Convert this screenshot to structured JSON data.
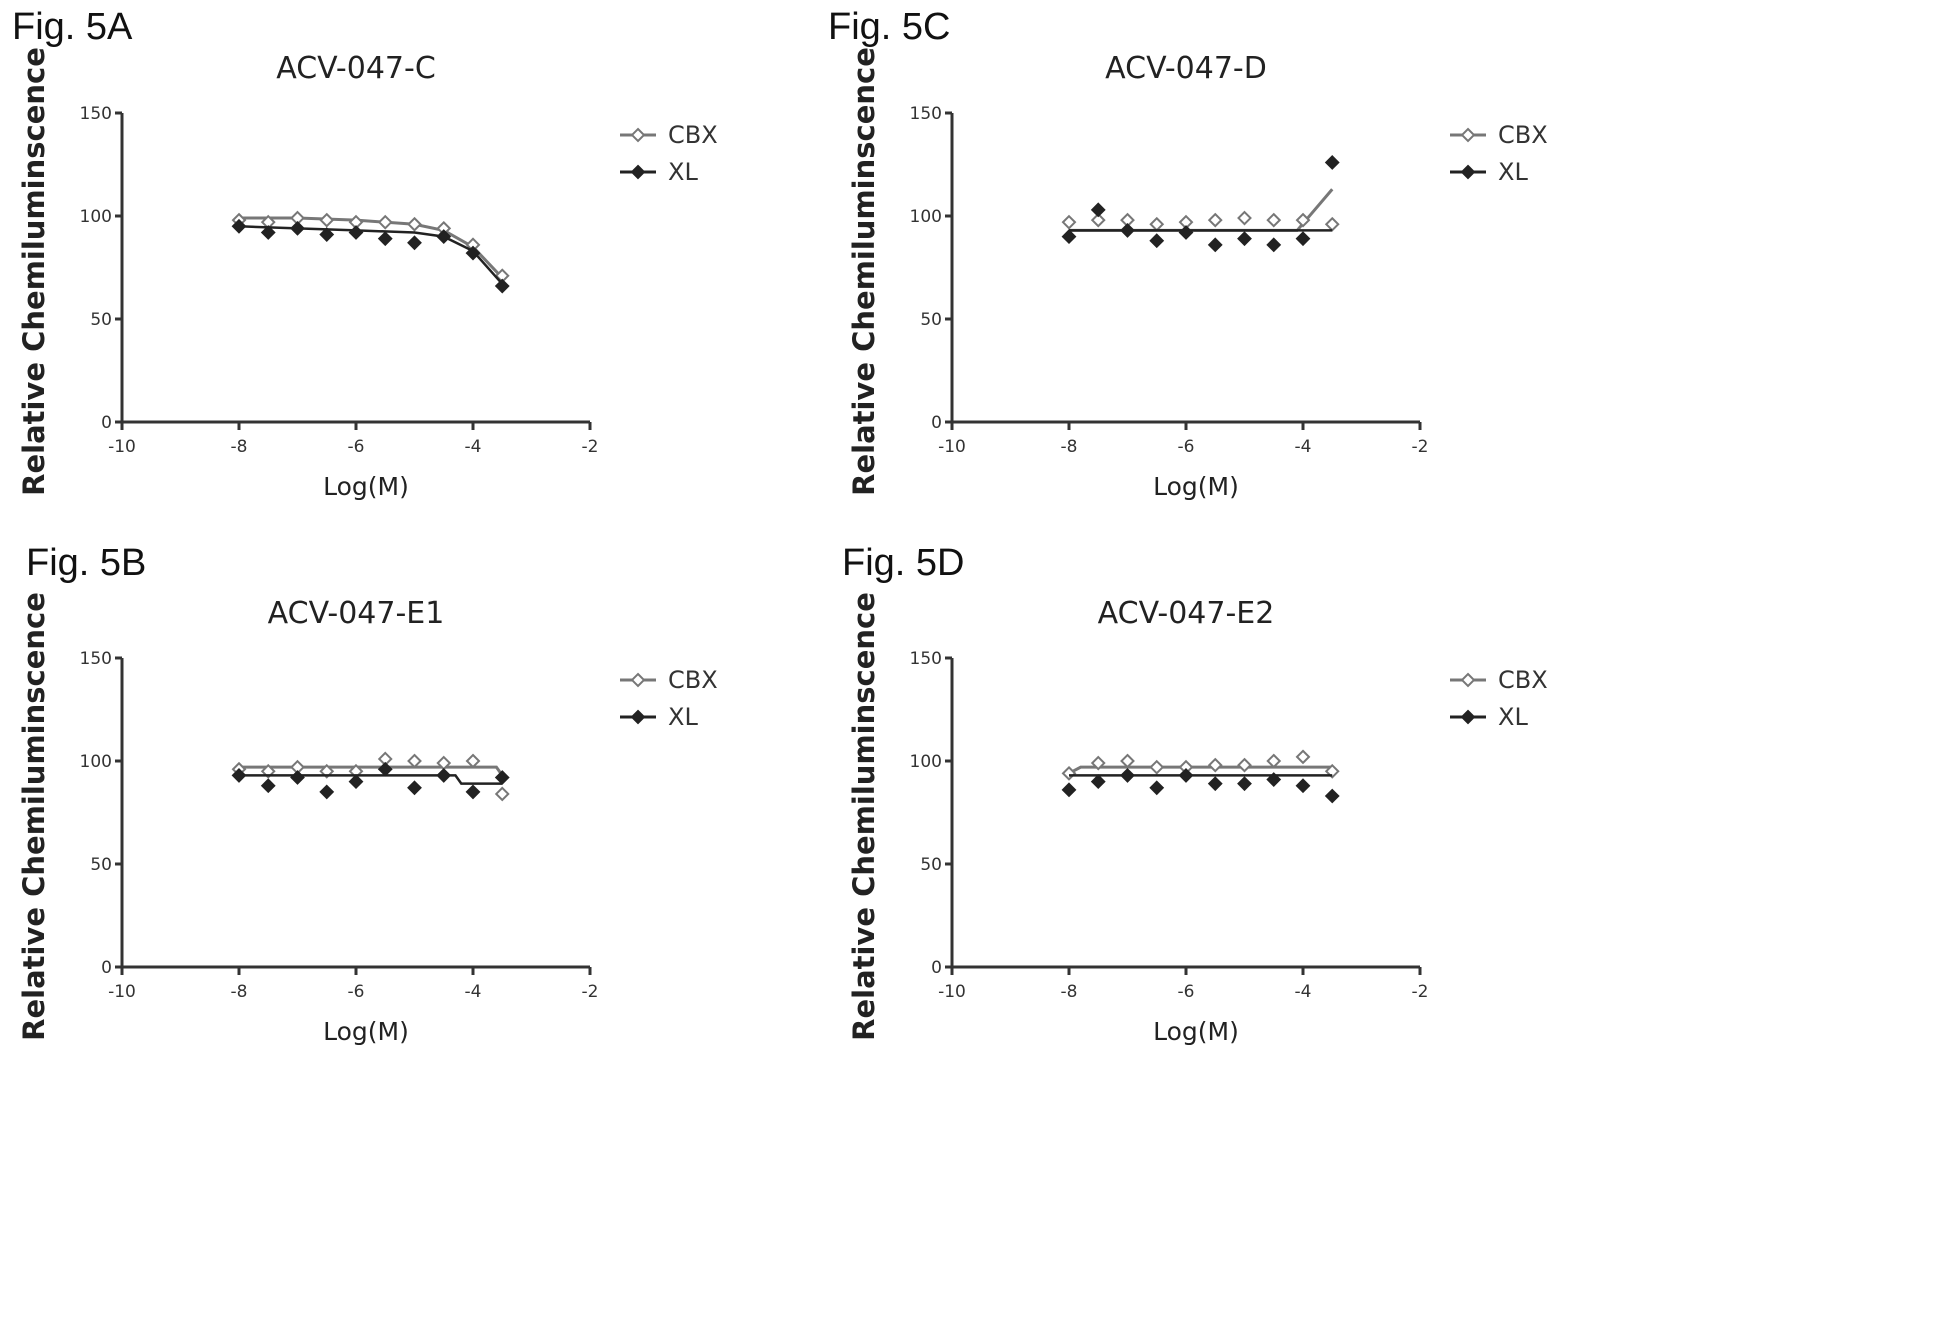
{
  "chart_data": [
    {
      "panel_label": "Fig. 5A",
      "type": "scatter",
      "title": "ACV-047-C",
      "xlabel": "Log(M)",
      "ylabel": "Relative Chemiluminscence",
      "xlim": [
        -10,
        -2
      ],
      "ylim": [
        0,
        150
      ],
      "x_ticks": [
        "-10",
        "-8",
        "-6",
        "-4",
        "-2"
      ],
      "y_ticks": [
        "0",
        "50",
        "100",
        "150"
      ],
      "legend_position": "right",
      "series": [
        {
          "name": "CBX",
          "marker": "open-diamond",
          "x": [
            -8,
            -7.5,
            -7,
            -6.5,
            -6,
            -5.5,
            -5,
            -4.5,
            -4,
            -3.5
          ],
          "y": [
            98,
            97,
            99,
            98,
            97,
            97,
            96,
            94,
            86,
            71
          ],
          "fit_x": [
            -8,
            -7,
            -6,
            -5,
            -4.5,
            -4,
            -3.5
          ],
          "fit_y": [
            99,
            99,
            98,
            96,
            93,
            85,
            70
          ]
        },
        {
          "name": "XL",
          "marker": "filled-diamond",
          "x": [
            -8,
            -7.5,
            -7,
            -6.5,
            -6,
            -5.5,
            -5,
            -4.5,
            -4,
            -3.5
          ],
          "y": [
            95,
            92,
            94,
            91,
            92,
            89,
            87,
            90,
            82,
            66
          ],
          "fit_x": [
            -8,
            -7,
            -6,
            -5,
            -4.5,
            -4,
            -3.5
          ],
          "fit_y": [
            95,
            94,
            93,
            92,
            90,
            83,
            67
          ]
        }
      ]
    },
    {
      "panel_label": "Fig. 5C",
      "type": "scatter",
      "title": "ACV-047-D",
      "xlabel": "Log(M)",
      "ylabel": "Relative Chemiluminscence",
      "xlim": [
        -10,
        -2
      ],
      "ylim": [
        0,
        150
      ],
      "x_ticks": [
        "-10",
        "-8",
        "-6",
        "-4",
        "-2"
      ],
      "y_ticks": [
        "0",
        "50",
        "100",
        "150"
      ],
      "legend_position": "right",
      "series": [
        {
          "name": "CBX",
          "marker": "open-diamond",
          "x": [
            -8,
            -7.5,
            -7,
            -6.5,
            -6,
            -5.5,
            -5,
            -4.5,
            -4,
            -3.5
          ],
          "y": [
            97,
            98,
            98,
            96,
            97,
            98,
            99,
            98,
            98,
            96
          ],
          "fit_x": [
            -8,
            -6,
            -4.1,
            -3.5
          ],
          "fit_y": [
            93,
            93,
            93,
            113
          ]
        },
        {
          "name": "XL",
          "marker": "filled-diamond",
          "x": [
            -8,
            -7.5,
            -7,
            -6.5,
            -6,
            -5.5,
            -5,
            -4.5,
            -4,
            -3.5
          ],
          "y": [
            90,
            103,
            93,
            88,
            92,
            86,
            89,
            86,
            89,
            126
          ],
          "fit_x": [
            -8,
            -6,
            -4,
            -3.5
          ],
          "fit_y": [
            93,
            93,
            93,
            93
          ]
        }
      ]
    },
    {
      "panel_label": "Fig. 5B",
      "type": "scatter",
      "title": "ACV-047-E1",
      "xlabel": "Log(M)",
      "ylabel": "Relative Chemiluminscence",
      "xlim": [
        -10,
        -2
      ],
      "ylim": [
        0,
        150
      ],
      "x_ticks": [
        "-10",
        "-8",
        "-6",
        "-4",
        "-2"
      ],
      "y_ticks": [
        "0",
        "50",
        "100",
        "150"
      ],
      "legend_position": "right",
      "series": [
        {
          "name": "CBX",
          "marker": "open-diamond",
          "x": [
            -8,
            -7.5,
            -7,
            -6.5,
            -6,
            -5.5,
            -5,
            -4.5,
            -4,
            -3.5
          ],
          "y": [
            96,
            95,
            97,
            95,
            95,
            101,
            100,
            99,
            100,
            84
          ],
          "fit_x": [
            -8,
            -6,
            -4,
            -3.6,
            -3.5
          ],
          "fit_y": [
            97,
            97,
            97,
            97,
            93
          ]
        },
        {
          "name": "XL",
          "marker": "filled-diamond",
          "x": [
            -8,
            -7.5,
            -7,
            -6.5,
            -6,
            -5.5,
            -5,
            -4.5,
            -4,
            -3.5
          ],
          "y": [
            93,
            88,
            92,
            85,
            90,
            96,
            87,
            93,
            85,
            92
          ],
          "fit_x": [
            -8,
            -5,
            -4.3,
            -4.2,
            -3.5
          ],
          "fit_y": [
            93,
            93,
            93,
            89,
            89
          ]
        }
      ]
    },
    {
      "panel_label": "Fig. 5D",
      "type": "scatter",
      "title": "ACV-047-E2",
      "xlabel": "Log(M)",
      "ylabel": "Relative Chemiluminscence",
      "xlim": [
        -10,
        -2
      ],
      "ylim": [
        0,
        150
      ],
      "x_ticks": [
        "-10",
        "-8",
        "-6",
        "-4",
        "-2"
      ],
      "y_ticks": [
        "0",
        "50",
        "100",
        "150"
      ],
      "legend_position": "right",
      "series": [
        {
          "name": "CBX",
          "marker": "open-diamond",
          "x": [
            -8,
            -7.5,
            -7,
            -6.5,
            -6,
            -5.5,
            -5,
            -4.5,
            -4,
            -3.5
          ],
          "y": [
            94,
            99,
            100,
            97,
            97,
            98,
            98,
            100,
            102,
            95
          ],
          "fit_x": [
            -8,
            -7.8,
            -6,
            -4,
            -3.5
          ],
          "fit_y": [
            94,
            97,
            97,
            97,
            97
          ]
        },
        {
          "name": "XL",
          "marker": "filled-diamond",
          "x": [
            -8,
            -7.5,
            -7,
            -6.5,
            -6,
            -5.5,
            -5,
            -4.5,
            -4,
            -3.5
          ],
          "y": [
            86,
            90,
            93,
            87,
            93,
            89,
            89,
            91,
            88,
            83
          ],
          "fit_x": [
            -8,
            -6,
            -4,
            -3.5
          ],
          "fit_y": [
            93,
            93,
            93,
            93
          ]
        }
      ]
    }
  ]
}
